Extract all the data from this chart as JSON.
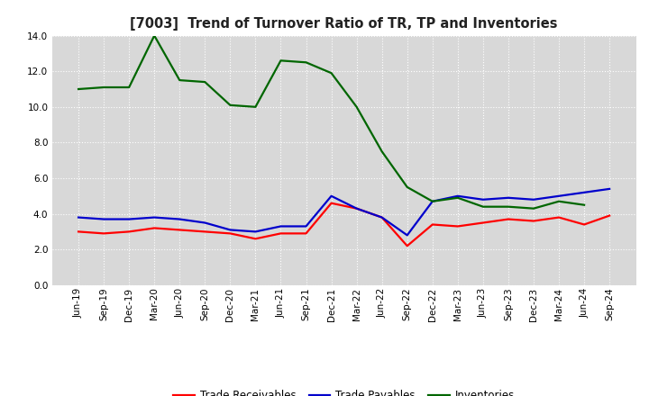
{
  "title": "[7003]  Trend of Turnover Ratio of TR, TP and Inventories",
  "x_labels": [
    "Jun-19",
    "Sep-19",
    "Dec-19",
    "Mar-20",
    "Jun-20",
    "Sep-20",
    "Dec-20",
    "Mar-21",
    "Jun-21",
    "Sep-21",
    "Dec-21",
    "Mar-22",
    "Jun-22",
    "Sep-22",
    "Dec-22",
    "Mar-23",
    "Jun-23",
    "Sep-23",
    "Dec-23",
    "Mar-24",
    "Jun-24",
    "Sep-24"
  ],
  "trade_receivables": [
    3.0,
    2.9,
    3.0,
    3.2,
    3.1,
    3.0,
    2.9,
    2.6,
    2.9,
    2.9,
    4.6,
    4.3,
    3.8,
    2.2,
    3.4,
    3.3,
    3.5,
    3.7,
    3.6,
    3.8,
    3.4,
    3.9
  ],
  "trade_payables": [
    3.8,
    3.7,
    3.7,
    3.8,
    3.7,
    3.5,
    3.1,
    3.0,
    3.3,
    3.3,
    5.0,
    4.3,
    3.8,
    2.8,
    4.7,
    5.0,
    4.8,
    4.9,
    4.8,
    5.0,
    5.2,
    5.4
  ],
  "inventories": [
    11.0,
    11.1,
    11.1,
    14.0,
    11.5,
    11.4,
    10.1,
    10.0,
    12.6,
    12.5,
    11.9,
    10.0,
    7.5,
    5.5,
    4.7,
    4.9,
    4.4,
    4.4,
    4.3,
    4.7,
    4.5,
    null
  ],
  "colors": {
    "trade_receivables": "#ff0000",
    "trade_payables": "#0000cc",
    "inventories": "#006600"
  },
  "ylim": [
    0.0,
    14.0
  ],
  "yticks": [
    0.0,
    2.0,
    4.0,
    6.0,
    8.0,
    10.0,
    12.0,
    14.0
  ],
  "background_color": "#ffffff",
  "plot_area_color": "#d8d8d8",
  "linewidth": 1.6,
  "legend_labels": [
    "Trade Receivables",
    "Trade Payables",
    "Inventories"
  ],
  "title_fontsize": 10.5,
  "tick_fontsize": 7.5,
  "legend_fontsize": 8.5
}
